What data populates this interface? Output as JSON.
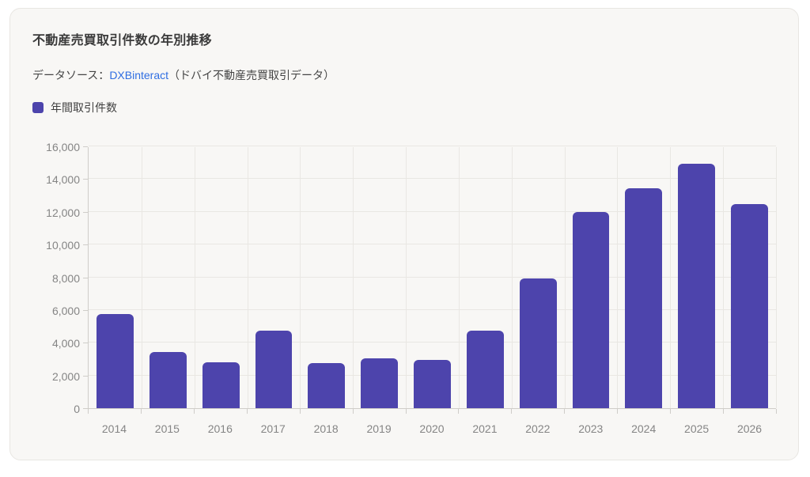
{
  "card": {
    "title": "不動産売買取引件数の年別推移",
    "source": {
      "prefix": "データソース：",
      "link_text": "DXBinteract",
      "suffix": "（ドバイ不動産売買取引データ）"
    },
    "legend": [
      {
        "label": "年間取引件数",
        "color": "#4d44ac"
      }
    ]
  },
  "chart_data": {
    "type": "bar",
    "title": "不動産売買取引件数の年別推移",
    "categories": [
      "2014",
      "2015",
      "2016",
      "2017",
      "2018",
      "2019",
      "2020",
      "2021",
      "2022",
      "2023",
      "2024",
      "2025",
      "2026"
    ],
    "series": [
      {
        "name": "年間取引件数",
        "values": [
          5750,
          3450,
          2800,
          4750,
          2750,
          3050,
          2950,
          4750,
          7950,
          12000,
          13450,
          14950,
          12450
        ]
      }
    ],
    "xlabel": "",
    "ylabel": "",
    "ylim": [
      0,
      16000
    ],
    "ytick_step": 2000,
    "grid": true,
    "legend_position": "top-left",
    "bar_color": "#4d44ac",
    "bar_width_fraction": 0.7
  },
  "colors": {
    "bar": "#4d44ac",
    "link": "#2f6ee2",
    "grid": "#e9e7e3",
    "axis": "#cfcdc9",
    "tick_label": "#858585",
    "title": "#3a3a3a",
    "text": "#454545",
    "card_bg": "#f8f7f5",
    "card_border": "#e8e6e2",
    "page_bg": "#ffffff"
  }
}
